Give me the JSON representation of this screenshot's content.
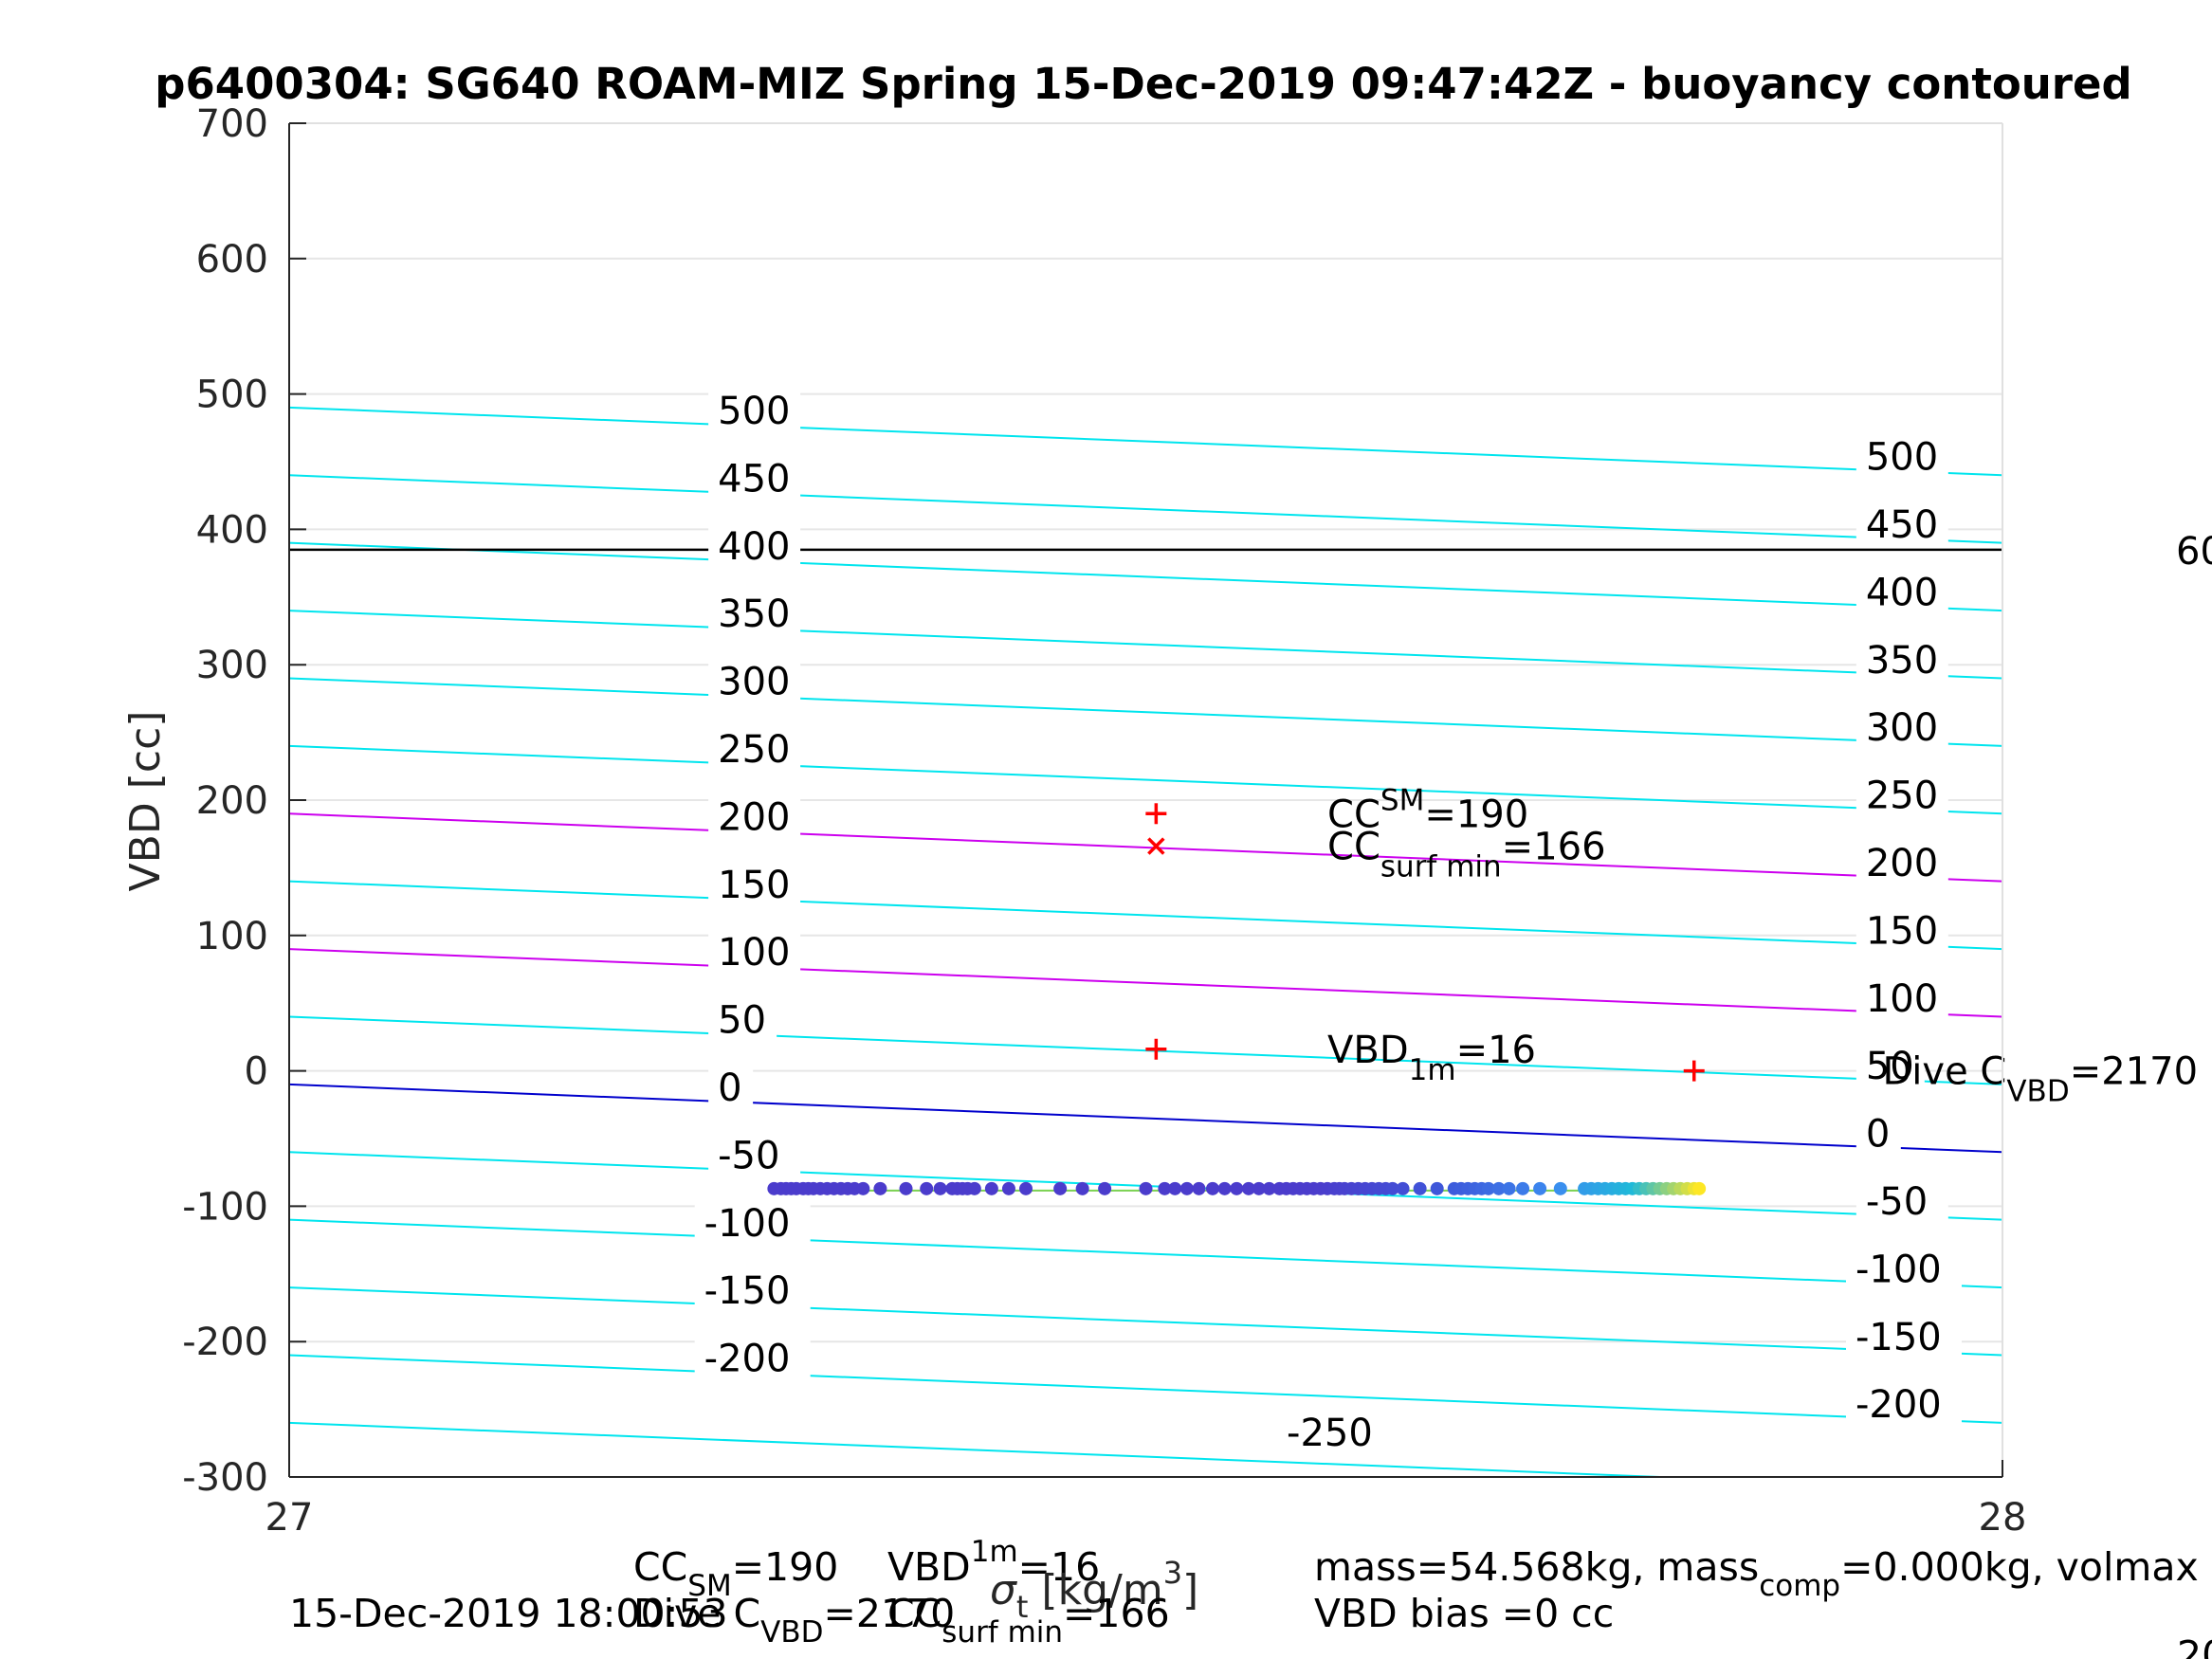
{
  "chart_data": {
    "type": "scatter",
    "title": "p6400304: SG640 ROAM-MIZ Spring 15-Dec-2019 09:47:42Z - buoyancy contoured",
    "ylabel": "VBD [cc]",
    "xlabel_prefix": "σ",
    "xlabel_sub": "t",
    "xlabel_suffix": " [kg/m",
    "xlabel_sup": "3",
    "xlabel_close": "]",
    "xlim": [
      27,
      28
    ],
    "ylim": [
      -300,
      700
    ],
    "x_ticks": [
      27,
      28
    ],
    "x_tick_labels": [
      "27",
      "28"
    ],
    "y_ticks": [
      -300,
      -200,
      -100,
      0,
      100,
      200,
      300,
      400,
      500,
      600,
      700
    ],
    "y_tick_labels": [
      "-300",
      "-200",
      "-100",
      "0",
      "100",
      "200",
      "300",
      "400",
      "500",
      "600",
      "700"
    ],
    "grid": true,
    "reference_line": {
      "y": 385,
      "color": "#000000",
      "right_label": "60"
    },
    "contour_slope": -0.5,
    "contours": [
      {
        "level": 500,
        "y_at_x0": 490,
        "color": "#00e5ee"
      },
      {
        "level": 450,
        "y_at_x0": 440,
        "color": "#00e5ee"
      },
      {
        "level": 400,
        "y_at_x0": 390,
        "color": "#00e5ee"
      },
      {
        "level": 350,
        "y_at_x0": 340,
        "color": "#00e5ee"
      },
      {
        "level": 300,
        "y_at_x0": 290,
        "color": "#00e5ee"
      },
      {
        "level": 250,
        "y_at_x0": 240,
        "color": "#00e5ee"
      },
      {
        "level": 200,
        "y_at_x0": 190,
        "color": "#cc00ee"
      },
      {
        "level": 150,
        "y_at_x0": 140,
        "color": "#00e5ee"
      },
      {
        "level": 100,
        "y_at_x0": 90,
        "color": "#cc00ee"
      },
      {
        "level": 50,
        "y_at_x0": 40,
        "color": "#00e5ee"
      },
      {
        "level": 0,
        "y_at_x0": -10,
        "color": "#0000cc"
      },
      {
        "level": -50,
        "y_at_x0": -60,
        "color": "#00e5ee"
      },
      {
        "level": -100,
        "y_at_x0": -110,
        "color": "#00e5ee"
      },
      {
        "level": -150,
        "y_at_x0": -160,
        "color": "#00e5ee"
      },
      {
        "level": -200,
        "y_at_x0": -210,
        "color": "#00e5ee"
      },
      {
        "level": -250,
        "y_at_x0": -260,
        "color": "#00e5ee"
      }
    ],
    "left_contour_labels": [
      {
        "text": "500",
        "x": 27.248,
        "y": 478
      },
      {
        "text": "450",
        "x": 27.248,
        "y": 428
      },
      {
        "text": "400",
        "x": 27.248,
        "y": 378
      },
      {
        "text": "350",
        "x": 27.248,
        "y": 328
      },
      {
        "text": "300",
        "x": 27.248,
        "y": 278
      },
      {
        "text": "250",
        "x": 27.248,
        "y": 228
      },
      {
        "text": "200",
        "x": 27.248,
        "y": 178
      },
      {
        "text": "150",
        "x": 27.248,
        "y": 128
      },
      {
        "text": "100",
        "x": 27.248,
        "y": 78
      },
      {
        "text": "50",
        "x": 27.248,
        "y": 28
      },
      {
        "text": "0",
        "x": 27.248,
        "y": -22
      },
      {
        "text": "-50",
        "x": 27.248,
        "y": -72
      },
      {
        "text": "-100",
        "x": 27.24,
        "y": -122
      },
      {
        "text": "-150",
        "x": 27.24,
        "y": -172
      },
      {
        "text": "-200",
        "x": 27.24,
        "y": -222
      },
      {
        "text": "-250",
        "x": 27.58,
        "y": -277
      }
    ],
    "right_contour_labels": [
      {
        "text": "500",
        "x": 27.918,
        "y": 444
      },
      {
        "text": "450",
        "x": 27.918,
        "y": 394
      },
      {
        "text": "400",
        "x": 27.918,
        "y": 344
      },
      {
        "text": "350",
        "x": 27.918,
        "y": 294
      },
      {
        "text": "300",
        "x": 27.918,
        "y": 244
      },
      {
        "text": "250",
        "x": 27.918,
        "y": 194
      },
      {
        "text": "200",
        "x": 27.918,
        "y": 144
      },
      {
        "text": "150",
        "x": 27.918,
        "y": 94
      },
      {
        "text": "100",
        "x": 27.918,
        "y": 44
      },
      {
        "text": "50",
        "x": 27.918,
        "y": -6
      },
      {
        "text": "0",
        "x": 27.918,
        "y": -56
      },
      {
        "text": "-50",
        "x": 27.918,
        "y": -106
      },
      {
        "text": "-100",
        "x": 27.912,
        "y": -156
      },
      {
        "text": "-150",
        "x": 27.912,
        "y": -206
      },
      {
        "text": "-200",
        "x": 27.912,
        "y": -256
      }
    ],
    "markers": [
      {
        "name": "CC_SM",
        "symbol": "+",
        "x": 27.506,
        "y": 190,
        "color": "#ff0000"
      },
      {
        "name": "CC_surf_min",
        "symbol": "x",
        "x": 27.506,
        "y": 166,
        "color": "#ff0000"
      },
      {
        "name": "VBD_1m",
        "symbol": "+",
        "x": 27.506,
        "y": 16,
        "color": "#ff0000"
      },
      {
        "name": "Dive_C_VBD",
        "symbol": "+",
        "x": 27.82,
        "y": 0,
        "color": "#ff0000"
      }
    ],
    "annotations": [
      {
        "main": "CC",
        "sub": "SM",
        "rest": "=190",
        "x": 27.606,
        "y": 190
      },
      {
        "main": "CC",
        "sub": "surf min",
        "rest": "=166",
        "x": 27.606,
        "y": 166
      },
      {
        "main": "VBD",
        "sub": "1m",
        "rest": "=16",
        "x": 27.606,
        "y": 16
      },
      {
        "main": "Dive C",
        "sub": "VBD",
        "rest": "=2170",
        "x": 27.93,
        "y": 0
      }
    ],
    "scatter_series": {
      "y": -87,
      "x_min": 27.283,
      "x_max": 27.823,
      "colormap": [
        "#4b3ccc",
        "#4b3ccc",
        "#3d5cdc",
        "#3c8cf0",
        "#1fb9d9",
        "#fde725"
      ],
      "x": [
        27.283,
        27.287,
        27.29,
        27.293,
        27.296,
        27.3,
        27.303,
        27.306,
        27.31,
        27.314,
        27.318,
        27.322,
        27.326,
        27.33,
        27.335,
        27.345,
        27.36,
        27.372,
        27.38,
        27.387,
        27.39,
        27.393,
        27.396,
        27.4,
        27.41,
        27.42,
        27.43,
        27.45,
        27.463,
        27.476,
        27.5,
        27.511,
        27.517,
        27.524,
        27.531,
        27.539,
        27.546,
        27.553,
        27.56,
        27.566,
        27.572,
        27.578,
        27.582,
        27.586,
        27.59,
        27.594,
        27.598,
        27.602,
        27.606,
        27.61,
        27.613,
        27.616,
        27.62,
        27.624,
        27.628,
        27.632,
        27.636,
        27.64,
        27.644,
        27.65,
        27.66,
        27.67,
        27.68,
        27.684,
        27.688,
        27.692,
        27.696,
        27.7,
        27.706,
        27.712,
        27.72,
        27.73,
        27.742,
        27.756,
        27.76,
        27.764,
        27.768,
        27.772,
        27.776,
        27.78,
        27.784,
        27.788,
        27.792,
        27.796,
        27.8,
        27.804,
        27.808,
        27.812,
        27.816,
        27.82,
        27.823
      ]
    }
  },
  "footer": {
    "line1_left": {
      "main": "CC",
      "sub": "SM",
      "rest": "=190"
    },
    "line1_mid": {
      "main": "VBD",
      "sub": "1m",
      "rest": "=16"
    },
    "line1_right": {
      "text": "mass=54.568kg, mass",
      "sub": "comp",
      "rest": "=0.000kg, volmax"
    },
    "line2_date": "15-Dec-2019 18:00:53",
    "line2_left": {
      "main": "Dive C",
      "sub": "VBD",
      "rest": "=2170"
    },
    "line2_mid": {
      "main": "CC",
      "sub": "surf min",
      "rest": "=166"
    },
    "line2_right": "VBD bias =0 cc",
    "cut_right": "20"
  }
}
